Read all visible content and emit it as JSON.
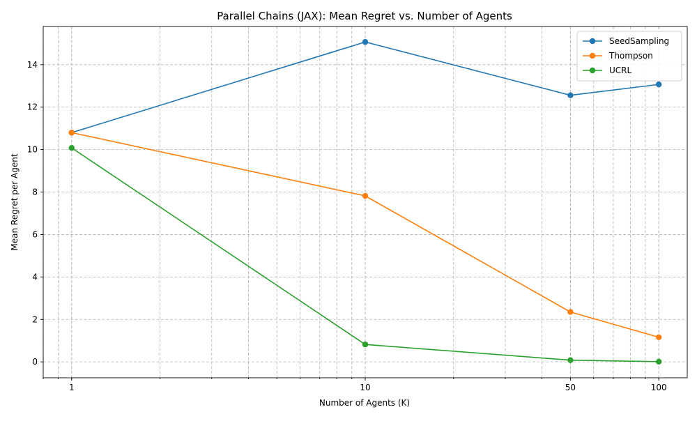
{
  "chart_data": {
    "type": "line",
    "title": "Parallel Chains (JAX): Mean Regret vs. Number of Agents",
    "xlabel": "Number of Agents (K)",
    "ylabel": "Mean Regret per Agent",
    "xscale": "log",
    "xlim": [
      0.8,
      125
    ],
    "ylim": [
      -0.75,
      15.8
    ],
    "x": [
      1,
      10,
      50,
      100
    ],
    "x_ticks": [
      1,
      10,
      50,
      100
    ],
    "x_tick_labels": [
      "1",
      "10",
      "50",
      "100"
    ],
    "y_ticks": [
      0,
      2,
      4,
      6,
      8,
      10,
      12,
      14
    ],
    "y_tick_labels": [
      "0",
      "2",
      "4",
      "6",
      "8",
      "10",
      "12",
      "14"
    ],
    "grid": true,
    "legend_position": "top-right",
    "series": [
      {
        "name": "SeedSampling",
        "color": "#1f77b4",
        "values": [
          10.8,
          15.07,
          12.56,
          13.07
        ]
      },
      {
        "name": "Thompson",
        "color": "#ff7f0e",
        "values": [
          10.8,
          7.82,
          2.35,
          1.16
        ]
      },
      {
        "name": "UCRL",
        "color": "#2ca02c",
        "values": [
          10.08,
          0.82,
          0.08,
          0.01
        ]
      }
    ]
  }
}
